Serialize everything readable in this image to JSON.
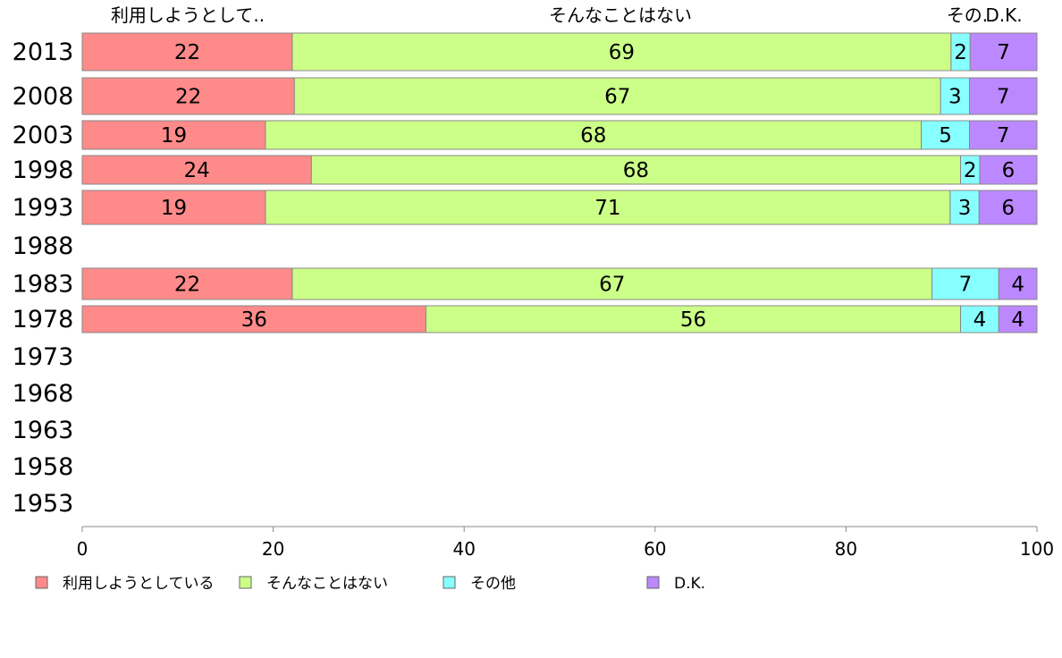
{
  "chart_data": {
    "type": "bar",
    "orientation": "horizontal",
    "stacked": true,
    "categories": [
      "2013",
      "2008",
      "2003",
      "1998",
      "1993",
      "1988",
      "1983",
      "1978",
      "1973",
      "1968",
      "1963",
      "1958",
      "1953"
    ],
    "series": [
      {
        "name": "利用しようとしている",
        "header": "利用しようとして..",
        "color": "#ff8a8a",
        "values": [
          22,
          22,
          19,
          24,
          19,
          null,
          22,
          36,
          null,
          null,
          null,
          null,
          null
        ]
      },
      {
        "name": "そんなことはない",
        "header": "そんなことはない",
        "color": "#ccff88",
        "values": [
          69,
          67,
          68,
          68,
          71,
          null,
          67,
          56,
          null,
          null,
          null,
          null,
          null
        ]
      },
      {
        "name": "その他",
        "header": "その.",
        "color": "#88ffff",
        "values": [
          2,
          3,
          5,
          2,
          3,
          null,
          7,
          4,
          null,
          null,
          null,
          null,
          null
        ]
      },
      {
        "name": "D.K.",
        "header": "D.K.",
        "color": "#bb88ff",
        "values": [
          7,
          7,
          7,
          6,
          6,
          null,
          4,
          4,
          null,
          null,
          null,
          null,
          null
        ]
      }
    ],
    "xlim": [
      0,
      100
    ],
    "xticks": [
      "0",
      "20",
      "40",
      "60",
      "80",
      "100"
    ],
    "legend_position": "bottom"
  }
}
